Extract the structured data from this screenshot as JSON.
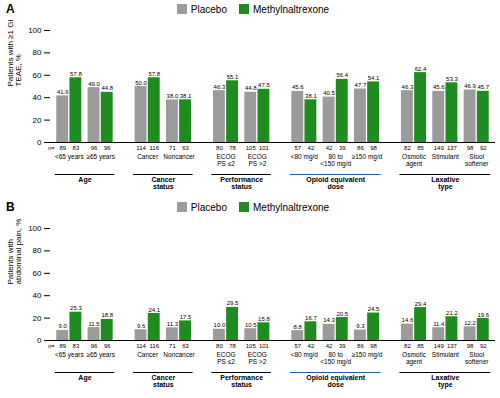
{
  "chart_data": [
    {
      "type": "bar",
      "title": "A",
      "y_label": "Patients with ≥1 GI\nTEAE, %",
      "groups": [
        {
          "label": "Age",
          "color": "#000000",
          "categories": [
            "<65 years",
            "≥65 years"
          ]
        },
        {
          "label": "Cancer\nstatus",
          "color": "#000000",
          "categories": [
            "Cancer",
            "Noncancer"
          ]
        },
        {
          "label": "Performance\nstatus",
          "color": "#000000",
          "categories": [
            "ECOG\nPS ≤2",
            "ECOG\nPS >2"
          ]
        },
        {
          "label": "Opioid equivalent\ndose",
          "color": "#1a5fa8",
          "categories": [
            "<80 mg/d",
            "80 to\n<150 mg/d",
            "≥150 mg/d"
          ]
        },
        {
          "label": "Laxative\ntype",
          "color": "#000000",
          "categories": [
            "Osmotic\nagent",
            "Stimulant",
            "Stool\nsoftener"
          ]
        }
      ],
      "series": [
        {
          "name": "Placebo",
          "color": "#9b9b9b",
          "values": [
            41.6,
            49.0,
            50.0,
            38.0,
            46.3,
            44.8,
            45.6,
            40.5,
            47.7,
            46.3,
            45.6,
            46.9
          ],
          "value_labels": [
            "41.6",
            "49.0",
            "50.0",
            "38.0",
            "46.3",
            "44.8",
            "45.6",
            "40.5",
            "47.7",
            "46.3",
            "45.6",
            "46.9"
          ],
          "n": [
            89,
            96,
            114,
            71,
            80,
            105,
            57,
            42,
            86,
            82,
            149,
            98
          ]
        },
        {
          "name": "Methylnaltrexone",
          "color": "#1f8c1f",
          "values": [
            57.8,
            44.8,
            57.8,
            38.1,
            55.1,
            47.5,
            38.1,
            56.4,
            54.1,
            62.4,
            53.3,
            45.7
          ],
          "value_labels": [
            "57.8",
            "44.8",
            "57.8",
            "38.1",
            "55.1",
            "47.5",
            "38.1",
            "56.4",
            "54.1",
            "62.4",
            "53.3",
            "45.7"
          ],
          "n": [
            83,
            96,
            116,
            63,
            78,
            101,
            42,
            39,
            98,
            85,
            137,
            92
          ]
        }
      ],
      "n_label": "n=",
      "ylim": [
        0,
        100
      ],
      "yticks": [
        0,
        20,
        40,
        60,
        80,
        100
      ],
      "data_labels": true,
      "legend": "top",
      "grid": false
    },
    {
      "type": "bar",
      "title": "B",
      "y_label": "Patients with\nabdominal pain, %",
      "groups": [
        {
          "label": "Age",
          "color": "#000000",
          "categories": [
            "<65 years",
            "≥65 years"
          ]
        },
        {
          "label": "Cancer\nstatus",
          "color": "#000000",
          "categories": [
            "Cancer",
            "Noncancer"
          ]
        },
        {
          "label": "Performance\nstatus",
          "color": "#000000",
          "categories": [
            "ECOG\nPS ≤2",
            "ECOG\nPS >2"
          ]
        },
        {
          "label": "Opioid equivalent\ndose",
          "color": "#1a5fa8",
          "categories": [
            "<80 mg/d",
            "80 to\n<150 mg/d",
            "≥150 mg/d"
          ]
        },
        {
          "label": "Laxative\ntype",
          "color": "#000000",
          "categories": [
            "Osmotic\nagent",
            "Stimulant",
            "Stool\nsoftener"
          ]
        }
      ],
      "series": [
        {
          "name": "Placebo",
          "color": "#9b9b9b",
          "values": [
            9.0,
            11.5,
            9.6,
            11.3,
            10.0,
            10.5,
            8.8,
            14.3,
            9.3,
            14.6,
            11.4,
            12.2
          ],
          "value_labels": [
            "9.0",
            "11.5",
            "9.6",
            "11.3",
            "10.0",
            "10.5",
            "8.8",
            "14.3",
            "9.3",
            "14.6",
            "11.4",
            "12.2"
          ],
          "n": [
            89,
            96,
            114,
            71,
            80,
            105,
            57,
            42,
            86,
            82,
            149,
            98
          ]
        },
        {
          "name": "Methylnaltrexone",
          "color": "#1f8c1f",
          "values": [
            25.3,
            18.8,
            24.1,
            17.5,
            29.5,
            15.8,
            16.7,
            20.5,
            24.5,
            29.4,
            21.2,
            19.6
          ],
          "value_labels": [
            "25.3",
            "18.8",
            "24.1",
            "17.5",
            "29.5",
            "15.8",
            "16.7",
            "20.5",
            "24.5",
            "29.4",
            "21.2",
            "19.6"
          ],
          "n": [
            83,
            96,
            116,
            63,
            78,
            101,
            42,
            39,
            98,
            85,
            137,
            92
          ]
        }
      ],
      "n_label": "n=",
      "ylim": [
        0,
        100
      ],
      "yticks": [
        0,
        20,
        40,
        60,
        80,
        100
      ],
      "data_labels": true,
      "legend": "top",
      "grid": false
    }
  ]
}
